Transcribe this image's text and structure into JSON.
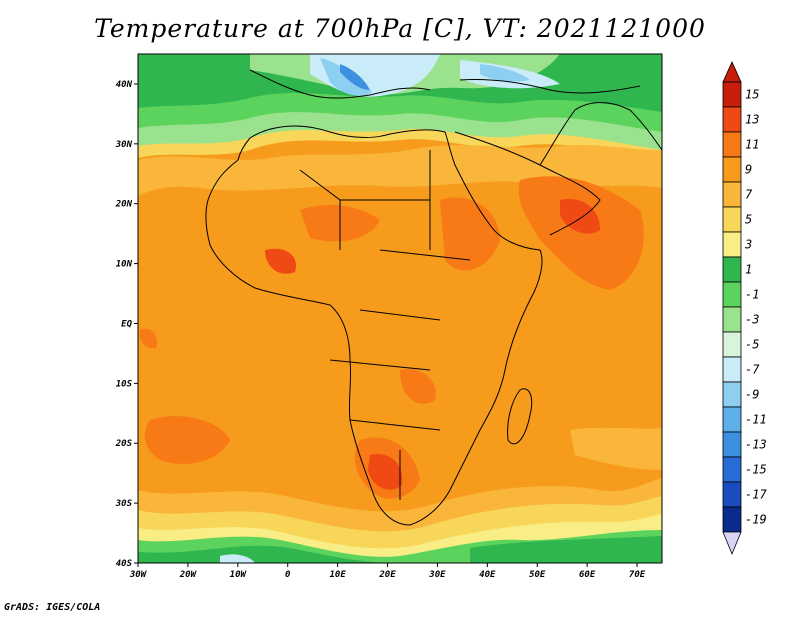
{
  "title": "Temperature at 700hPa [C], VT: 2021121000",
  "credit": "GrADS: IGES/COLA",
  "map": {
    "lat_labels": [
      "40N",
      "30N",
      "20N",
      "10N",
      "EQ",
      "10S",
      "20S",
      "30S",
      "40S"
    ],
    "lon_labels": [
      "30W",
      "20W",
      "10W",
      "0",
      "10E",
      "20E",
      "30E",
      "40E",
      "50E",
      "60E",
      "70E"
    ],
    "lon_range": [
      -30,
      75
    ],
    "lat_range": [
      -40,
      45
    ]
  },
  "colorbar": {
    "labels": [
      "15",
      "13",
      "11",
      "9",
      "7",
      "5",
      "3",
      "1",
      "-1",
      "-3",
      "-5",
      "-7",
      "-9",
      "-11",
      "-13",
      "-15",
      "-17",
      "-19"
    ],
    "colors": [
      "#c71e0b",
      "#f04a14",
      "#f77a16",
      "#f79b1c",
      "#f9b63a",
      "#f7d65a",
      "#f9ee86",
      "#2fb64e",
      "#5bd35c",
      "#9be28e",
      "#d8f4dc",
      "#c9ecf8",
      "#8dcff1",
      "#5bb0ea",
      "#3d8fe0",
      "#2a6cd6",
      "#1a4cc0",
      "#0a2a8e"
    ],
    "top_arrow_color": "#c71e0b",
    "bottom_arrow_color": "#d9d4f5"
  }
}
